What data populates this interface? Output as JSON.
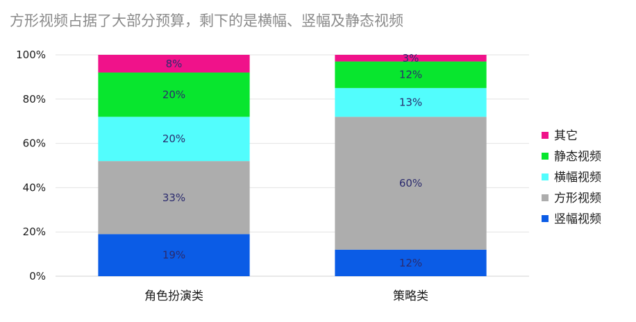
{
  "chart_data": {
    "type": "bar",
    "stacked": true,
    "title": "方形视频占据了大部分预算，剩下的是横幅、竖幅及静态视频",
    "xlabel": "",
    "ylabel": "",
    "ylim": [
      0,
      100
    ],
    "y_ticks": [
      "0%",
      "20%",
      "40%",
      "60%",
      "80%",
      "100%"
    ],
    "grid": true,
    "legend_position": "right",
    "categories": [
      "角色扮演类",
      "策略类"
    ],
    "series": [
      {
        "name": "竖幅视频",
        "color": "#0b5ce6",
        "values": [
          19,
          12
        ],
        "labels": [
          "19%",
          "12%"
        ]
      },
      {
        "name": "方形视频",
        "color": "#adadad",
        "values": [
          33,
          60
        ],
        "labels": [
          "33%",
          "60%"
        ]
      },
      {
        "name": "横幅视频",
        "color": "#52fdfd",
        "values": [
          20,
          13
        ],
        "labels": [
          "20%",
          "13%"
        ]
      },
      {
        "name": "静态视频",
        "color": "#08e62e",
        "values": [
          20,
          12
        ],
        "labels": [
          "20%",
          "12%"
        ]
      },
      {
        "name": "其它",
        "color": "#f0128a",
        "values": [
          8,
          3
        ],
        "labels": [
          "8%",
          "3%"
        ]
      }
    ]
  }
}
